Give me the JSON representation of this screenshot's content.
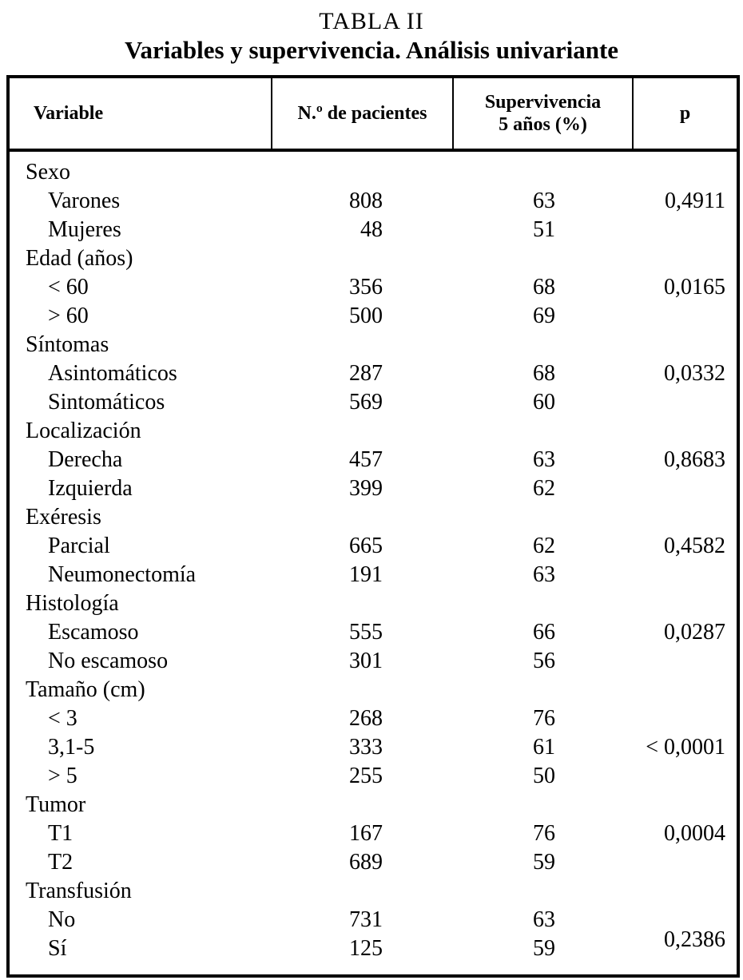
{
  "page": {
    "title": "TABLA II",
    "subtitle": "Variables y supervivencia. Análisis univariante"
  },
  "table": {
    "headers": {
      "variable": "Variable",
      "patients": "N.º de pacientes",
      "survival_line1": "Supervivencia",
      "survival_line2": "5 años (%)",
      "p": "p"
    },
    "groups": [
      {
        "label": "Sexo",
        "rows": [
          {
            "variable": "Varones",
            "patients": "808",
            "survival": "63",
            "p": "0,4911"
          },
          {
            "variable": "Mujeres",
            "patients": "48",
            "survival": "51",
            "p": ""
          }
        ]
      },
      {
        "label": "Edad (años)",
        "rows": [
          {
            "variable": "< 60",
            "patients": "356",
            "survival": "68",
            "p": "0,0165"
          },
          {
            "variable": "> 60",
            "patients": "500",
            "survival": "69",
            "p": ""
          }
        ]
      },
      {
        "label": "Síntomas",
        "rows": [
          {
            "variable": "Asintomáticos",
            "patients": "287",
            "survival": "68",
            "p": "0,0332"
          },
          {
            "variable": "Sintomáticos",
            "patients": "569",
            "survival": "60",
            "p": ""
          }
        ]
      },
      {
        "label": "Localización",
        "rows": [
          {
            "variable": "Derecha",
            "patients": "457",
            "survival": "63",
            "p": "0,8683"
          },
          {
            "variable": "Izquierda",
            "patients": "399",
            "survival": "62",
            "p": ""
          }
        ]
      },
      {
        "label": "Exéresis",
        "rows": [
          {
            "variable": "Parcial",
            "patients": "665",
            "survival": "62",
            "p": "0,4582"
          },
          {
            "variable": "Neumonectomía",
            "patients": "191",
            "survival": "63",
            "p": ""
          }
        ]
      },
      {
        "label": "Histología",
        "rows": [
          {
            "variable": "Escamoso",
            "patients": "555",
            "survival": "66",
            "p": "0,0287"
          },
          {
            "variable": "No escamoso",
            "patients": "301",
            "survival": "56",
            "p": ""
          }
        ]
      },
      {
        "label": "Tamaño (cm)",
        "rows": [
          {
            "variable": "< 3",
            "patients": "268",
            "survival": "76",
            "p": ""
          },
          {
            "variable": "3,1-5",
            "patients": "333",
            "survival": "61",
            "p": "< 0,0001"
          },
          {
            "variable": "> 5",
            "patients": "255",
            "survival": "50",
            "p": ""
          }
        ]
      },
      {
        "label": "Tumor",
        "rows": [
          {
            "variable": "T1",
            "patients": "167",
            "survival": "76",
            "p": "0,0004"
          },
          {
            "variable": "T2",
            "patients": "689",
            "survival": "59",
            "p": ""
          }
        ]
      },
      {
        "label": "Transfusión",
        "rows": [
          {
            "variable": "No",
            "patients": "731",
            "survival": "63",
            "p": ""
          },
          {
            "variable": "Sí",
            "patients": "125",
            "survival": "59",
            "p": ""
          }
        ],
        "group_p": "0,2386"
      }
    ]
  }
}
